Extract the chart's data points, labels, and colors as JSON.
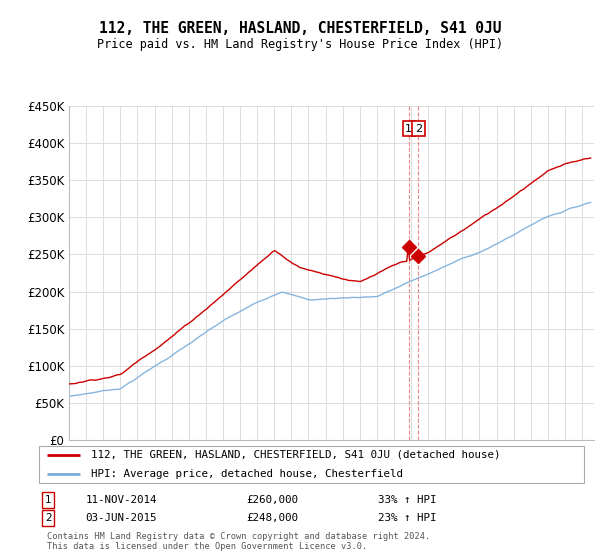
{
  "title": "112, THE GREEN, HASLAND, CHESTERFIELD, S41 0JU",
  "subtitle": "Price paid vs. HM Land Registry's House Price Index (HPI)",
  "legend_line1": "112, THE GREEN, HASLAND, CHESTERFIELD, S41 0JU (detached house)",
  "legend_line2": "HPI: Average price, detached house, Chesterfield",
  "annotation1_date": "11-NOV-2014",
  "annotation1_price": "£260,000",
  "annotation1_hpi": "33% ↑ HPI",
  "annotation2_date": "03-JUN-2015",
  "annotation2_price": "£248,000",
  "annotation2_hpi": "23% ↑ HPI",
  "footnote": "Contains HM Land Registry data © Crown copyright and database right 2024.\nThis data is licensed under the Open Government Licence v3.0.",
  "property_color": "#cc0000",
  "hpi_color": "#7aaddb",
  "vline_color": "#cc0000",
  "ylim": [
    0,
    450000
  ],
  "yticks": [
    0,
    50000,
    100000,
    150000,
    200000,
    250000,
    300000,
    350000,
    400000,
    450000
  ],
  "ytick_labels": [
    "£0",
    "£50K",
    "£100K",
    "£150K",
    "£200K",
    "£250K",
    "£300K",
    "£350K",
    "£400K",
    "£450K"
  ],
  "sale1_x": 2014.87,
  "sale1_y": 260000,
  "sale2_x": 2015.42,
  "sale2_y": 248000,
  "xmin": 1995.0,
  "xmax": 2025.7
}
